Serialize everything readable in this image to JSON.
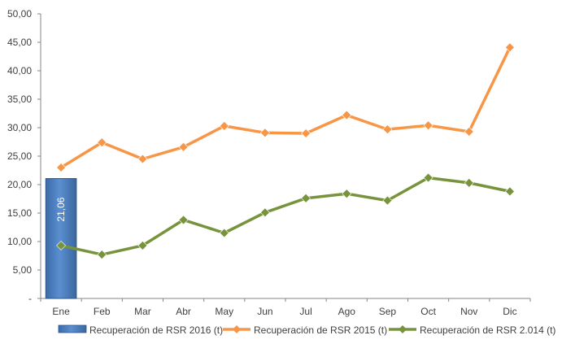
{
  "chart_data": {
    "type": "bar",
    "categories": [
      "Ene",
      "Feb",
      "Mar",
      "Abr",
      "May",
      "Jun",
      "Jul",
      "Ago",
      "Sep",
      "Oct",
      "Nov",
      "Dic"
    ],
    "ylim": [
      0,
      50
    ],
    "y_tick_labels": [
      "-",
      "5,00",
      "10,00",
      "15,00",
      "20,00",
      "25,00",
      "30,00",
      "35,00",
      "40,00",
      "45,00",
      "50,00"
    ],
    "grid": false,
    "legend_position": "bottom",
    "series": [
      {
        "name": "Recuperación de RSR 2016 (t)",
        "type": "bar",
        "color": "#4f81bd",
        "values": [
          21.06,
          null,
          null,
          null,
          null,
          null,
          null,
          null,
          null,
          null,
          null,
          null
        ],
        "data_labels": [
          "21,06",
          null,
          null,
          null,
          null,
          null,
          null,
          null,
          null,
          null,
          null,
          null
        ]
      },
      {
        "name": "Recuperación de RSR 2015 (t)",
        "type": "line",
        "marker": "diamond",
        "color": "#f79646",
        "values": [
          23.0,
          27.4,
          24.5,
          26.6,
          30.3,
          29.1,
          29.0,
          32.2,
          29.7,
          30.4,
          29.3,
          44.1
        ]
      },
      {
        "name": "Recuperación de RSR 2.014 (t)",
        "type": "line",
        "marker": "diamond",
        "color": "#77933c",
        "values": [
          9.3,
          7.7,
          9.3,
          13.8,
          11.5,
          15.1,
          17.6,
          18.4,
          17.2,
          21.2,
          20.3,
          18.8
        ]
      }
    ]
  }
}
